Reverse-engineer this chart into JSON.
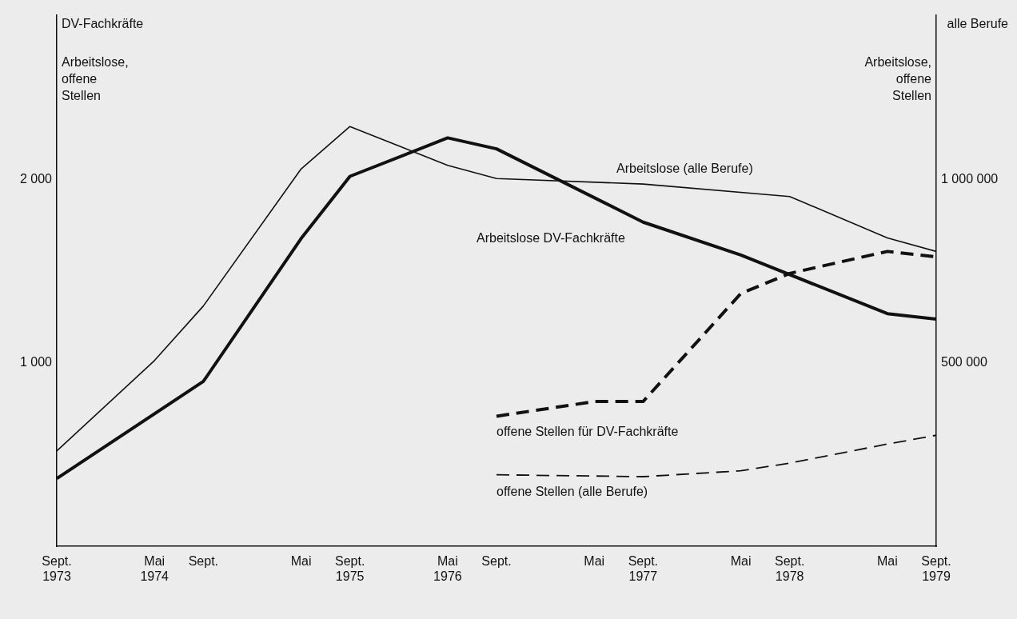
{
  "chart_data": {
    "type": "line",
    "ylabel": "Arbeitslose, offene Stellen",
    "y2label": "Arbeitslose, offene Stellen",
    "annotations": [
      "DV-Fachkräfte",
      "alle Berufe"
    ],
    "xlim": [
      "1973-09",
      "1979-09"
    ],
    "xticks": [
      {
        "value": "1973-09",
        "label": "Sept.\n1973"
      },
      {
        "value": "1974-05",
        "label": "Mai\n1974"
      },
      {
        "value": "1974-09",
        "label": "Sept."
      },
      {
        "value": "1975-05",
        "label": "Mai"
      },
      {
        "value": "1975-09",
        "label": "Sept.\n1975"
      },
      {
        "value": "1976-05",
        "label": "Mai\n1976"
      },
      {
        "value": "1976-09",
        "label": "Sept."
      },
      {
        "value": "1977-05",
        "label": "Mai"
      },
      {
        "value": "1977-09",
        "label": "Sept.\n1977"
      },
      {
        "value": "1978-05",
        "label": "Mai"
      },
      {
        "value": "1978-09",
        "label": "Sept.\n1978"
      },
      {
        "value": "1979-05",
        "label": "Mai"
      },
      {
        "value": "1979-09",
        "label": "Sept.\n1979"
      }
    ],
    "ylim": [
      0,
      2900
    ],
    "yticks": [
      {
        "value": 1000,
        "label": "1 000"
      },
      {
        "value": 2000,
        "label": "2 000"
      }
    ],
    "y2lim": [
      0,
      1450000
    ],
    "y2ticks": [
      {
        "value": 500000,
        "label": "500 000"
      },
      {
        "value": 1000000,
        "label": "1 000 000"
      }
    ],
    "series": [
      {
        "name": "Arbeitslose (alle Berufe)",
        "color": "#111111",
        "axis": "y2",
        "line_style": "solid",
        "x": [
          "1973-09",
          "1974-05",
          "1974-09",
          "1975-05",
          "1975-09",
          "1976-05",
          "1976-09",
          "1977-09",
          "1978-09",
          "1979-05",
          "1979-09"
        ],
        "values": [
          260000,
          507000,
          656000,
          1030000,
          1146000,
          1040000,
          1004000,
          989000,
          955000,
          842000,
          805000
        ]
      },
      {
        "name": "Arbeitslose DV-Fachkräfte",
        "color": "#111111",
        "axis": "y",
        "line_style": "solid",
        "x": [
          "1973-09",
          "1974-09",
          "1975-05",
          "1975-09",
          "1976-05",
          "1976-09",
          "1977-09",
          "1978-05",
          "1979-05",
          "1979-09"
        ],
        "values": [
          370,
          900,
          1680,
          2020,
          2230,
          2170,
          1770,
          1590,
          1270,
          1240
        ]
      },
      {
        "name": "offene Stellen für DV-Fachkräfte",
        "color": "#111111",
        "axis": "y",
        "line_style": "dashed",
        "x": [
          "1976-09",
          "1977-05",
          "1977-09",
          "1978-05",
          "1978-09",
          "1979-05",
          "1979-09"
        ],
        "values": [
          710,
          790,
          790,
          1380,
          1490,
          1610,
          1580
        ]
      },
      {
        "name": "offene Stellen (alle Berufe)",
        "color": "#111111",
        "axis": "y2",
        "line_style": "dashed",
        "x": [
          "1976-09",
          "1977-09",
          "1978-05",
          "1978-09",
          "1979-05",
          "1979-09"
        ],
        "values": [
          195000,
          190000,
          206000,
          227000,
          279000,
          303000
        ]
      }
    ],
    "marker": "none",
    "grid": false,
    "legend": false
  }
}
